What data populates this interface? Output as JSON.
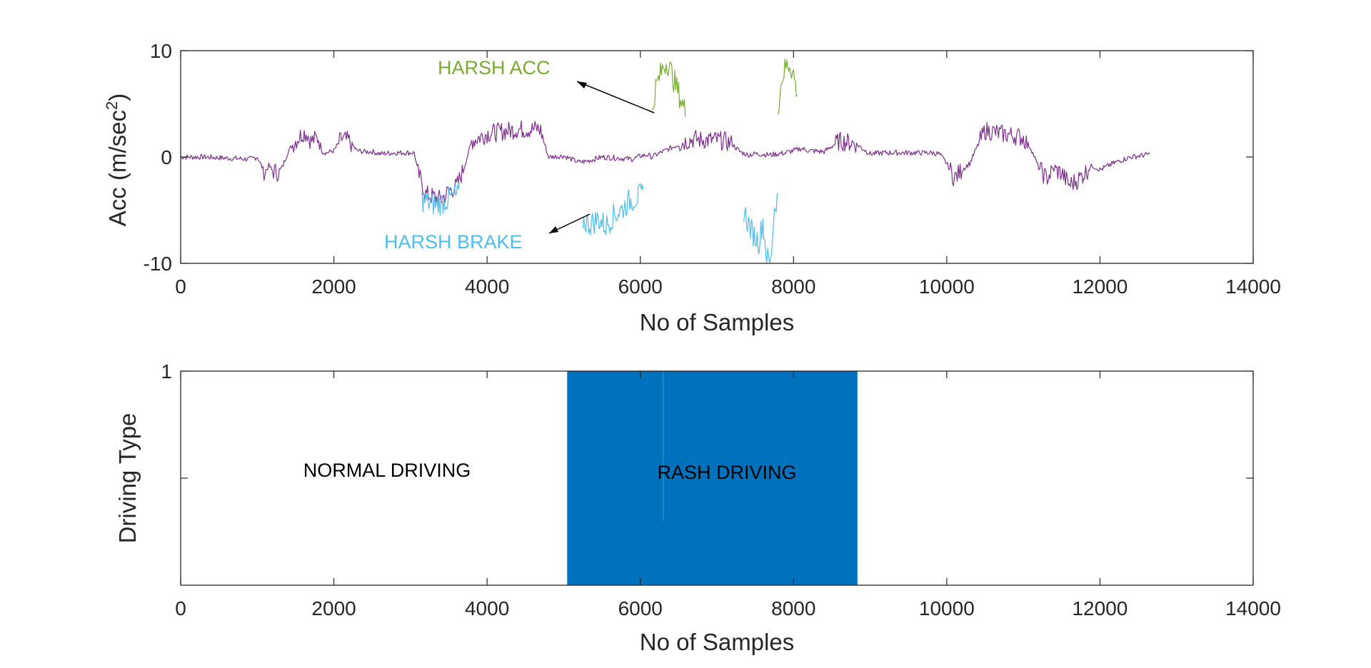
{
  "chart_data": [
    {
      "type": "line",
      "xlabel": "No of Samples",
      "ylabel": "Acc (m/sec",
      "ylabel_sup": "2",
      "ylabel_close": ")",
      "xlim": [
        0,
        14000
      ],
      "ylim": [
        -10,
        10
      ],
      "xticks": [
        0,
        2000,
        4000,
        6000,
        8000,
        10000,
        12000,
        14000
      ],
      "xtick_labels": [
        "0",
        "2000",
        "4000",
        "6000",
        "8000",
        "10000",
        "12000",
        "14000"
      ],
      "yticks": [
        -10,
        0,
        10
      ],
      "ytick_labels": [
        "-10",
        "0",
        "10"
      ],
      "grid": false,
      "series": [
        {
          "color": "#7e2f8e",
          "x": [
            0,
            300,
            600,
            900,
            1000,
            1100,
            1150,
            1200,
            1300,
            1400,
            1500,
            1600,
            1650,
            1700,
            1800,
            1850,
            1900,
            2000,
            2100,
            2200,
            2300,
            2400,
            2500,
            2600,
            2800,
            3000,
            3050,
            3100,
            3200,
            3400,
            3500,
            3600,
            3700,
            3800,
            4000,
            4200,
            4400,
            4600,
            4650,
            4700,
            4800,
            5000,
            5100,
            5200,
            5300,
            5500,
            5700,
            5900,
            6000,
            6100,
            6150,
            6200,
            6600,
            6700,
            6800,
            7000,
            7100,
            7200,
            7300,
            7400,
            7500,
            7700,
            7800,
            7900,
            8000,
            8100,
            8200,
            8400,
            8600,
            8800,
            9000,
            9200,
            9400,
            9600,
            9800,
            9900,
            10000,
            10100,
            10200,
            10300,
            10400,
            10500,
            10600,
            10700,
            10800,
            10900,
            11000,
            11100,
            11200,
            11300,
            11400,
            11500,
            11600,
            11700,
            11800,
            11900,
            12000,
            12200,
            12400,
            12600,
            12650
          ],
          "y": [
            0,
            0,
            -0.1,
            -0.2,
            0,
            -1.5,
            -0.8,
            -1.3,
            -1.5,
            0.5,
            1.5,
            2.3,
            2.2,
            1.5,
            1.8,
            0.5,
            0.4,
            0.6,
            1.7,
            1.5,
            0.6,
            0.5,
            0.5,
            0.3,
            0.4,
            0.4,
            0.4,
            -1.5,
            -3.5,
            -4,
            -3.2,
            -2.8,
            -1,
            1.5,
            2.2,
            2.4,
            2.6,
            2.6,
            2.7,
            2.5,
            0,
            0.1,
            -0.2,
            -0.5,
            -0.4,
            0,
            -0.1,
            -0.2,
            0.1,
            0.2,
            0,
            0.2,
            1.5,
            1.7,
            1.6,
            1.6,
            1.5,
            1.2,
            0.5,
            0.2,
            0.3,
            0.2,
            0.3,
            0.4,
            0.6,
            0.8,
            0.6,
            0.5,
            1.5,
            1.3,
            0.3,
            0.4,
            0.4,
            0.4,
            0.4,
            0.3,
            -0.6,
            -2,
            -1.2,
            -0.6,
            1,
            2.5,
            2.4,
            2.2,
            2.1,
            2,
            1.8,
            0.8,
            -1,
            -2,
            -1.2,
            -1.5,
            -2.6,
            -2.2,
            -1.5,
            -0.8,
            -1.2,
            -0.5,
            0,
            0.2,
            0.3
          ]
        },
        {
          "color": "#4dbeee",
          "x": [
            3150,
            3250,
            3350,
            3450,
            3550,
            3650,
            5250,
            5350,
            5450,
            5550,
            5650,
            5750,
            5850,
            5950,
            6050,
            7350,
            7450,
            7550,
            7600,
            7650,
            7700,
            7750,
            7800
          ],
          "y": [
            -4,
            -4.3,
            -4.5,
            -4.1,
            -3.8,
            -3.5,
            -6,
            -6.3,
            -5.8,
            -6.5,
            -5.5,
            -5,
            -4.2,
            -3.8,
            -3.5,
            -5,
            -7,
            -8,
            -6,
            -9.5,
            -10,
            -4.8,
            -3.5
          ]
        },
        {
          "color": "#77ac30",
          "x": [
            6150,
            6200,
            6250,
            6300,
            6350,
            6400,
            6450,
            6500,
            6550,
            6600,
            7800,
            7850,
            7900,
            7950,
            8000,
            8050
          ],
          "y": [
            4,
            6.5,
            7.5,
            8.5,
            9,
            8,
            7,
            6,
            5,
            4,
            5,
            7.5,
            8.5,
            8.8,
            7.8,
            5.8
          ]
        }
      ],
      "annotations": [
        {
          "text": "HARSH ACC",
          "color": "#77ac30"
        },
        {
          "text": "HARSH BRAKE",
          "color": "#4dbeee"
        }
      ]
    },
    {
      "type": "area",
      "xlabel": "No of Samples",
      "ylabel": "Driving Type",
      "xlim": [
        0,
        14000
      ],
      "ylim": [
        0,
        1
      ],
      "xticks": [
        0,
        2000,
        4000,
        6000,
        8000,
        10000,
        12000,
        14000
      ],
      "xtick_labels": [
        "0",
        "2000",
        "4000",
        "6000",
        "8000",
        "10000",
        "12000",
        "14000"
      ],
      "yticks": [
        1
      ],
      "ytick_labels": [
        "1"
      ],
      "grid": false,
      "fill_color": "#0072bd",
      "series": [
        {
          "x": [
            0,
            5050,
            5050,
            8830,
            8830,
            14000
          ],
          "values": [
            0,
            0,
            1,
            1,
            0,
            0
          ]
        }
      ],
      "annotations": [
        {
          "text": "NORMAL DRIVING"
        },
        {
          "text": "RASH DRIVING"
        }
      ]
    }
  ]
}
